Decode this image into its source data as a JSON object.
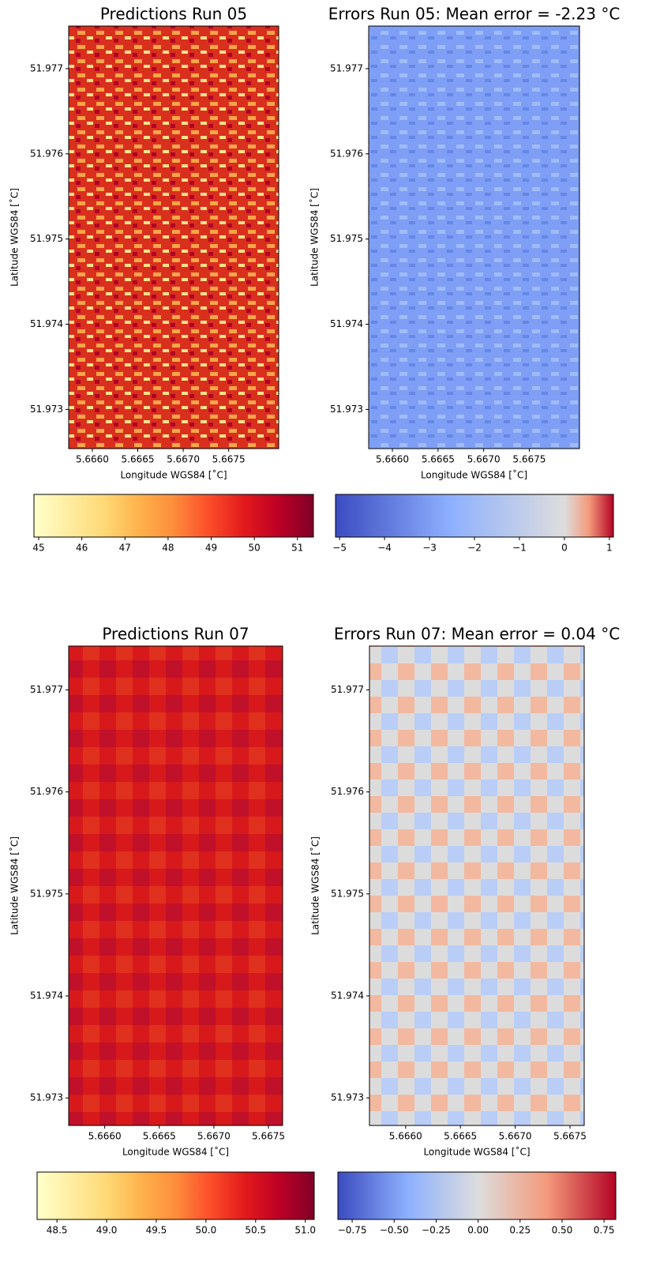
{
  "chart_data": [
    {
      "type": "heatmap",
      "title": "Predictions Run 05",
      "xlabel": "Longitude WGS84 [˚C]",
      "ylabel": "Latitude WGS84 [˚C]",
      "xlim": [
        5.66574,
        5.66805
      ],
      "ylim": [
        51.97254,
        51.9775
      ],
      "xticks": [
        {
          "value": 5.666,
          "label": "5.6660"
        },
        {
          "value": 5.6665,
          "label": "5.6665"
        },
        {
          "value": 5.667,
          "label": "5.6670"
        },
        {
          "value": 5.6675,
          "label": "5.6675"
        }
      ],
      "yticks": [
        51.973,
        51.974,
        51.975,
        51.976,
        51.977
      ],
      "colorbar": {
        "lim": [
          44.89,
          51.37
        ],
        "ticks": [
          45,
          46,
          47,
          48,
          49,
          50,
          51
        ],
        "colors": [
          "#ffffcc",
          "#ffeda0",
          "#fed976",
          "#feb24c",
          "#fd8d3c",
          "#fc4e2a",
          "#e31a1c",
          "#bd0026",
          "#800026"
        ]
      }
    },
    {
      "type": "heatmap",
      "title": "Errors Run 05: Mean error = -2.23 °C",
      "xlabel": "Longitude WGS84 [˚C]",
      "ylabel": "Latitude WGS84 [˚C]",
      "xlim": [
        5.66574,
        5.66805
      ],
      "ylim": [
        51.97254,
        51.9775
      ],
      "xticks": [
        {
          "value": 5.666,
          "label": "5.6660"
        },
        {
          "value": 5.6665,
          "label": "5.6665"
        },
        {
          "value": 5.667,
          "label": "5.6670"
        },
        {
          "value": 5.6675,
          "label": "5.6675"
        }
      ],
      "yticks": [
        51.973,
        51.974,
        51.975,
        51.976,
        51.977
      ],
      "colorbar": {
        "lim": [
          -5.09,
          1.09
        ],
        "center": 0,
        "ticks": [
          {
            "value": -5,
            "label": "−5"
          },
          {
            "value": -4,
            "label": "−4"
          },
          {
            "value": -3,
            "label": "−3"
          },
          {
            "value": -2,
            "label": "−2"
          },
          {
            "value": -1,
            "label": "−1"
          },
          0,
          1
        ],
        "colors": [
          "#3b4cc0",
          "#8db0fe",
          "#dddddd",
          "#f49a7b",
          "#b40426"
        ]
      }
    },
    {
      "type": "heatmap",
      "title": "Predictions Run 07",
      "xlabel": "Longitude WGS84 [˚C]",
      "ylabel": "Latitude WGS84 [˚C]",
      "xlim": [
        5.66567,
        5.66763
      ],
      "ylim": [
        51.97273,
        51.97743
      ],
      "xticks": [
        {
          "value": 5.666,
          "label": "5.6660"
        },
        {
          "value": 5.6665,
          "label": "5.6665"
        },
        {
          "value": 5.667,
          "label": "5.6670"
        },
        {
          "value": 5.6675,
          "label": "5.6675"
        }
      ],
      "yticks": [
        51.973,
        51.974,
        51.975,
        51.976,
        51.977
      ],
      "colorbar": {
        "lim": [
          48.3,
          51.09
        ],
        "ticks": [
          48.5,
          {
            "value": 49,
            "label": "49.0"
          },
          49.5,
          {
            "value": 50,
            "label": "50.0"
          },
          50.5,
          {
            "value": 51,
            "label": "51.0"
          }
        ],
        "colors": [
          "#ffffcc",
          "#ffeda0",
          "#fed976",
          "#feb24c",
          "#fd8d3c",
          "#fc4e2a",
          "#e31a1c",
          "#bd0026",
          "#800026"
        ]
      }
    },
    {
      "type": "heatmap",
      "title": "Errors Run 07: Mean error = 0.04 °C",
      "xlabel": "Longitude WGS84 [˚C]",
      "ylabel": "Latitude WGS84 [˚C]",
      "xlim": [
        5.66567,
        5.66763
      ],
      "ylim": [
        51.97273,
        51.97743
      ],
      "xticks": [
        {
          "value": 5.666,
          "label": "5.6660"
        },
        {
          "value": 5.6665,
          "label": "5.6665"
        },
        {
          "value": 5.667,
          "label": "5.6670"
        },
        {
          "value": 5.6675,
          "label": "5.6675"
        }
      ],
      "yticks": [
        51.973,
        51.974,
        51.975,
        51.976,
        51.977
      ],
      "colorbar": {
        "lim": [
          -0.835,
          0.82
        ],
        "center": 0,
        "ticks": [
          {
            "value": -0.75,
            "label": "−0.75"
          },
          {
            "value": -0.5,
            "label": "−0.50"
          },
          {
            "value": -0.25,
            "label": "−0.25"
          },
          {
            "value": 0,
            "label": "0.00"
          },
          0.25,
          {
            "value": 0.5,
            "label": "0.50"
          },
          0.75
        ],
        "colors": [
          "#3b4cc0",
          "#8db0fe",
          "#dddddd",
          "#f49a7b",
          "#b40426"
        ]
      }
    }
  ]
}
